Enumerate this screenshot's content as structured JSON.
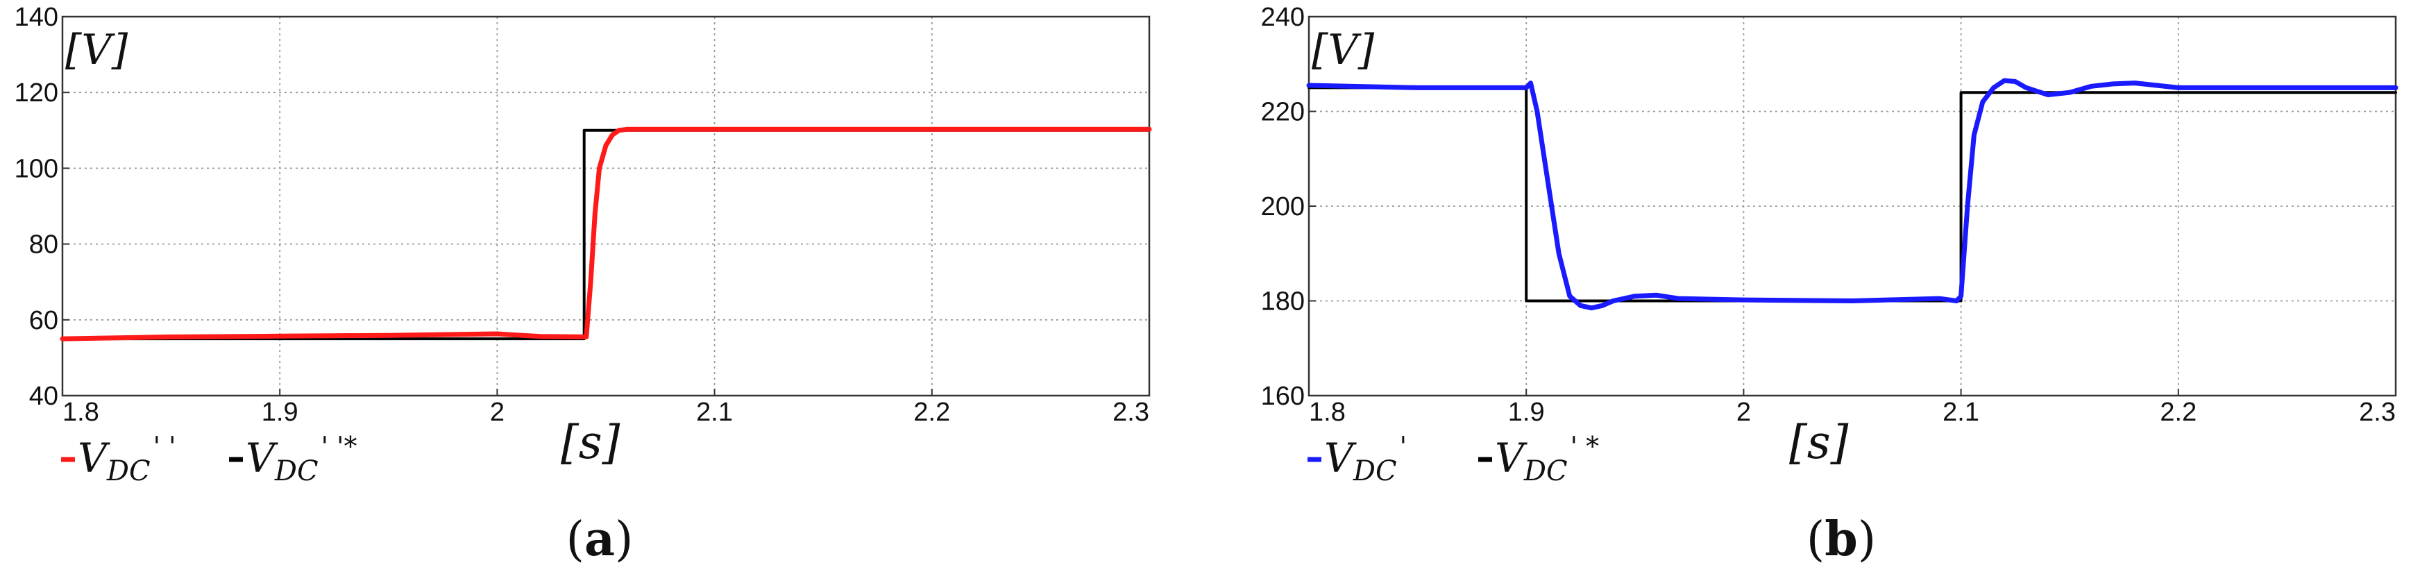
{
  "chart_data": [
    {
      "panel": "(a)",
      "type": "line",
      "ylabel": "[V]",
      "xlabel": "[s]",
      "xlim": [
        1.8,
        2.3
      ],
      "ylim": [
        40,
        140
      ],
      "xticks": [
        "1.8",
        "1.9",
        "2",
        "2.1",
        "2.2",
        "2.3"
      ],
      "yticks": [
        "40",
        "60",
        "80",
        "100",
        "120",
        "140"
      ],
      "grid": true,
      "legend_position": "bottom-left, below axes",
      "series": [
        {
          "name": "V_DC''",
          "legend_label": "V_DC''",
          "color": "#ff1a1a",
          "x": [
            1.8,
            1.85,
            1.9,
            1.95,
            2.0,
            2.02,
            2.041,
            2.043,
            2.045,
            2.047,
            2.05,
            2.053,
            2.056,
            2.06,
            2.1,
            2.2,
            2.3
          ],
          "y": [
            55,
            55.5,
            55.7,
            55.9,
            56.3,
            55.6,
            55.5,
            70,
            88,
            100,
            106,
            108.8,
            110,
            110.3,
            110.3,
            110.3,
            110.3
          ]
        },
        {
          "name": "V_DC''*",
          "legend_label": "V_DC''*",
          "color": "#000000",
          "x": [
            1.8,
            2.04,
            2.04,
            2.3
          ],
          "y": [
            55,
            55,
            110,
            110
          ]
        }
      ]
    },
    {
      "panel": "(b)",
      "type": "line",
      "ylabel": "[V]",
      "xlabel": "[s]",
      "xlim": [
        1.8,
        2.3
      ],
      "ylim": [
        160,
        240
      ],
      "xticks": [
        "1.8",
        "1.9",
        "2",
        "2.1",
        "2.2",
        "2.3"
      ],
      "yticks": [
        "160",
        "180",
        "200",
        "220",
        "240"
      ],
      "grid": true,
      "legend_position": "bottom-left, below axes",
      "series": [
        {
          "name": "V_DC'",
          "legend_label": "V_DC'",
          "color": "#1a1aff",
          "x": [
            1.8,
            1.85,
            1.9,
            1.902,
            1.905,
            1.91,
            1.915,
            1.92,
            1.925,
            1.93,
            1.935,
            1.94,
            1.95,
            1.96,
            1.97,
            2.0,
            2.05,
            2.09,
            2.098,
            2.1,
            2.103,
            2.106,
            2.11,
            2.115,
            2.12,
            2.125,
            2.13,
            2.14,
            2.15,
            2.16,
            2.17,
            2.18,
            2.19,
            2.2,
            2.25,
            2.3
          ],
          "y": [
            225.5,
            225,
            225,
            226,
            220,
            205,
            190,
            181,
            179,
            178.5,
            179,
            180,
            181,
            181.2,
            180.5,
            180.2,
            180,
            180.5,
            180,
            181,
            200,
            215,
            222,
            225,
            226.5,
            226.3,
            225,
            223.5,
            224,
            225.3,
            225.8,
            226,
            225.5,
            225,
            225,
            225
          ]
        },
        {
          "name": "V_DC'*",
          "legend_label": "V_DC'*",
          "color": "#000000",
          "x": [
            1.8,
            1.9,
            1.9,
            2.1,
            2.1,
            2.3
          ],
          "y": [
            225,
            225,
            180,
            180,
            224,
            224
          ]
        }
      ]
    }
  ],
  "legends": [
    {
      "items": [
        {
          "base": "V",
          "sub": "DC",
          "sup": "' '",
          "color": "#ff1a1a"
        },
        {
          "base": "V",
          "sub": "DC",
          "sup": "' '*",
          "color": "#000000"
        }
      ]
    },
    {
      "items": [
        {
          "base": "V",
          "sub": "DC",
          "sup": "'",
          "color": "#1a1aff"
        },
        {
          "base": "V",
          "sub": "DC",
          "sup": "' *",
          "color": "#000000"
        }
      ]
    }
  ],
  "panel_labels": [
    {
      "open": "(",
      "letter": "a",
      "close": ")"
    },
    {
      "open": "(",
      "letter": "b",
      "close": ")"
    }
  ]
}
